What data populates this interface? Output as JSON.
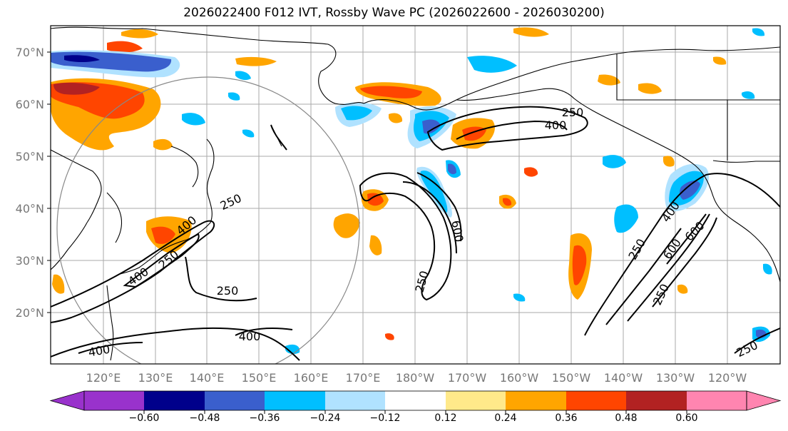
{
  "title": "2026022400 F012 IVT, Rossby Wave PC (2026022600 - 2026030200)",
  "lat_labels": [
    "70°N",
    "60°N",
    "50°N",
    "40°N",
    "30°N",
    "20°N"
  ],
  "lon_labels": [
    "120°E",
    "130°E",
    "140°E",
    "150°E",
    "160°E",
    "170°E",
    "180°W",
    "170°W",
    "160°W",
    "150°W",
    "140°W",
    "130°W",
    "120°W"
  ],
  "contour_labels": [
    "250",
    "400",
    "250",
    "400",
    "250",
    "400",
    "400",
    "250",
    "600",
    "250",
    "400",
    "600",
    "600",
    "250",
    "400",
    "250",
    "250"
  ],
  "colorbar": {
    "ticks": [
      "−0.60",
      "−0.48",
      "−0.36",
      "−0.24",
      "−0.12",
      "0.12",
      "0.24",
      "0.36",
      "0.48",
      "0.60"
    ],
    "colors": [
      "#9932cc",
      "#00008b",
      "#3a5fcd",
      "#00bfff",
      "#b0e2ff",
      "#ffffff",
      "#ffe98a",
      "#ffa500",
      "#ff4500",
      "#b22222",
      "#ff85b0"
    ]
  },
  "colors": {
    "positive_strong": "#b22222",
    "positive_mid": "#ff4500",
    "positive": "#ffa500",
    "positive_weak": "#ffe98a",
    "negative_weak": "#b0e2ff",
    "negative": "#00bfff",
    "negative_mid": "#3a5fcd",
    "negative_strong": "#00008b"
  }
}
